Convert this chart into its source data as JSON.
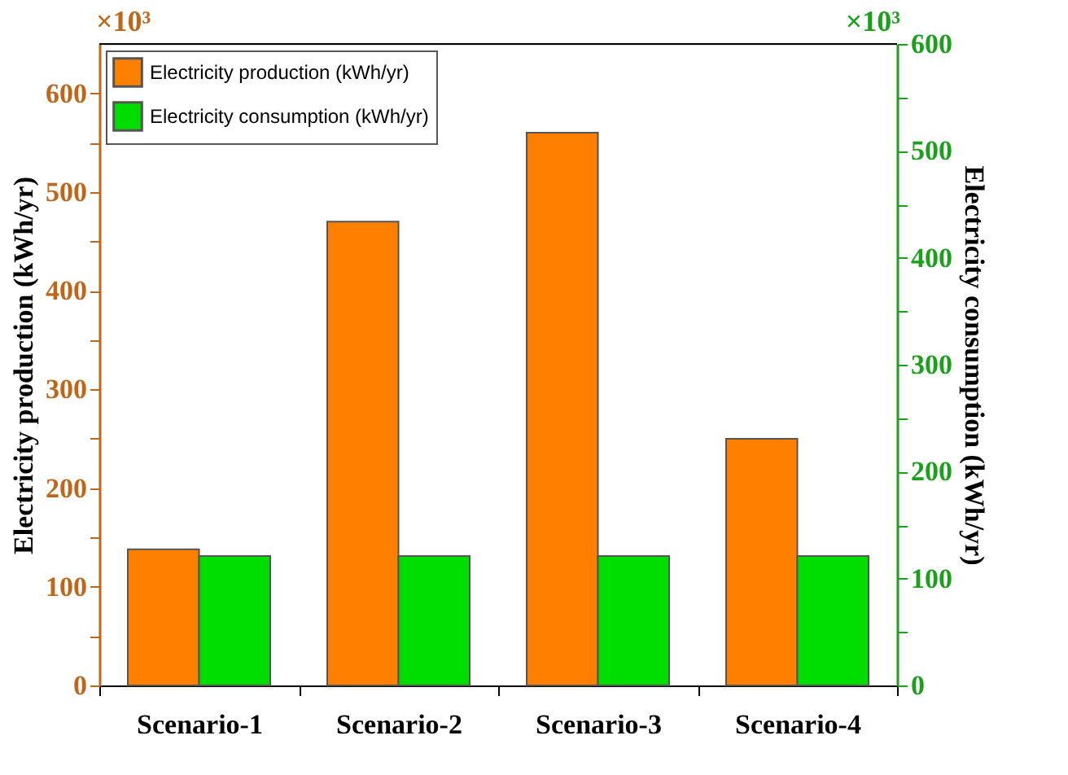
{
  "chart_data": {
    "type": "bar",
    "categories": [
      "Scenario-1",
      "Scenario-2",
      "Scenario-3",
      "Scenario-4"
    ],
    "ylabel": "Electricity production (kWh/yr)",
    "y2label": "Electricity consumption (kWh/yr)",
    "annotations": [
      "×10³",
      "×10³"
    ],
    "series": [
      {
        "name": "Electricity production (kWh/yr)",
        "color": "#ff8000",
        "values": [
          138,
          470,
          560,
          250
        ]
      },
      {
        "name": "Electricity consumption (kWh/yr)",
        "color": "#00dd00",
        "values": [
          121,
          121,
          121,
          121
        ],
        "axis": "y2"
      }
    ],
    "ylim": [
      0,
      650
    ],
    "yticks": [
      0,
      {
        "value": 50,
        "label": null
      },
      100,
      {
        "value": 150,
        "label": null
      },
      200,
      {
        "value": 250,
        "label": null
      },
      300,
      {
        "value": 350,
        "label": null
      },
      400,
      {
        "value": 450,
        "label": null
      },
      500,
      {
        "value": 550,
        "label": null
      },
      600
    ],
    "y2lim": [
      0,
      600
    ],
    "y2ticks": [
      0,
      {
        "value": 50,
        "label": null
      },
      100,
      {
        "value": 150,
        "label": null
      },
      200,
      {
        "value": 250,
        "label": null
      },
      300,
      {
        "value": 350,
        "label": null
      },
      400,
      {
        "value": 450,
        "label": null
      },
      500,
      {
        "value": 550,
        "label": null
      },
      600
    ],
    "grid": false,
    "legend": "top left"
  }
}
